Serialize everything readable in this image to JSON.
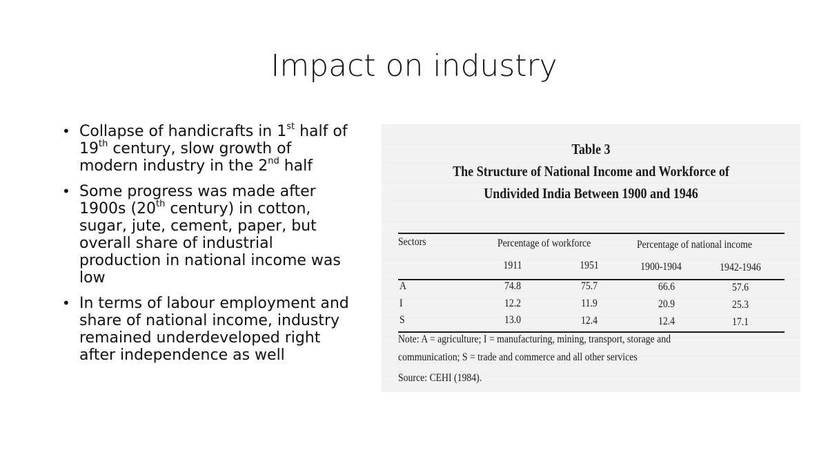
{
  "slide": {
    "title": "Impact on industry",
    "bullets": [
      {
        "parts": [
          {
            "t": "Collapse of handicrafts in 1"
          },
          {
            "t": "st",
            "sup": true
          },
          {
            "t": " half of 19"
          },
          {
            "t": "th",
            "sup": true
          },
          {
            "t": " century, slow growth of modern industry in the 2"
          },
          {
            "t": "nd",
            "sup": true
          },
          {
            "t": " half"
          }
        ]
      },
      {
        "parts": [
          {
            "t": "Some progress was made after 1900s (20"
          },
          {
            "t": "th",
            "sup": true
          },
          {
            "t": " century) in cotton, sugar, jute, cement, paper, but overall share of industrial production in national income was low"
          }
        ]
      },
      {
        "parts": [
          {
            "t": "In terms of labour employment and share of national income, industry remained underdeveloped right after independence as well"
          }
        ]
      }
    ]
  },
  "table": {
    "number": "Table 3",
    "title_line1": "The Structure of National Income and Workforce of",
    "title_line2": "Undivided India Between 1900 and 1946",
    "col_sectors": "Sectors",
    "group_workforce": "Percentage of workforce",
    "group_income": "Percentage of national income",
    "years": [
      "1911",
      "1951",
      "1900-1904",
      "1942-1946"
    ],
    "rows": [
      {
        "sector": "A",
        "values": [
          "74.8",
          "75.7",
          "66.6",
          "57.6"
        ]
      },
      {
        "sector": "I",
        "values": [
          "12.2",
          "11.9",
          "20.9",
          "25.3"
        ]
      },
      {
        "sector": "S",
        "values": [
          "13.0",
          "12.4",
          "12.4",
          "17.1"
        ]
      }
    ],
    "note_line1": "Note: A = agriculture; I = manufacturing, mining, transport, storage and",
    "note_line2": "communication;   S = trade and commerce and all other services",
    "source": "Source: CEHI (1984)."
  }
}
